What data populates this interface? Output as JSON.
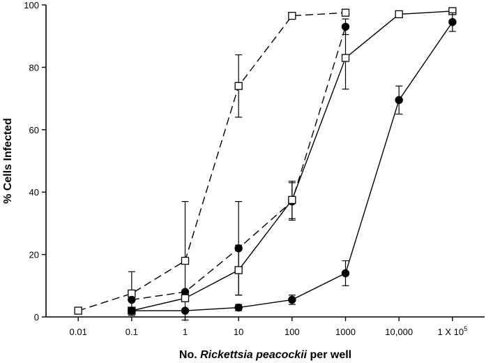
{
  "chart_data": {
    "type": "line",
    "xlabel_prefix": "No. ",
    "xlabel_italic": "Rickettsia peacockii",
    "xlabel_suffix": " per well",
    "ylabel": "% Cells Infected",
    "x_scale": "log",
    "xlim": [
      0.0025,
      400000
    ],
    "ylim": [
      0,
      100
    ],
    "x_ticks": [
      {
        "value": 0.01,
        "label": "0.01"
      },
      {
        "value": 0.1,
        "label": "0.1"
      },
      {
        "value": 1,
        "label": "1"
      },
      {
        "value": 10,
        "label": "10"
      },
      {
        "value": 100,
        "label": "100"
      },
      {
        "value": 1000,
        "label": "1000"
      },
      {
        "value": 10000,
        "label": "10,000"
      },
      {
        "value": 100000,
        "label": "1 X 10",
        "superscript": "5"
      }
    ],
    "y_ticks": [
      0,
      20,
      40,
      60,
      80,
      100
    ],
    "series": [
      {
        "marker": "open-square",
        "line": "dashed",
        "x": [
          0.01,
          0.1,
          1,
          10,
          100,
          1000
        ],
        "y": [
          2,
          7.5,
          18,
          74,
          96.5,
          97.5
        ],
        "err": [
          0,
          7,
          19,
          10,
          0,
          0
        ]
      },
      {
        "marker": "filled-circle",
        "line": "dashed",
        "x": [
          0.1,
          1,
          10,
          100,
          1000
        ],
        "y": [
          5.5,
          8,
          22,
          37,
          93
        ],
        "err": [
          0,
          0,
          15,
          6,
          2.5
        ]
      },
      {
        "marker": "open-square",
        "line": "solid",
        "x": [
          0.1,
          1,
          10,
          100,
          1000,
          10000,
          100000
        ],
        "y": [
          2,
          6,
          15,
          37.5,
          83,
          97,
          98
        ],
        "err": [
          0,
          0,
          8,
          6,
          10,
          0,
          0
        ]
      },
      {
        "marker": "filled-circle",
        "line": "solid",
        "x": [
          0.1,
          1,
          10,
          100,
          1000,
          10000,
          100000
        ],
        "y": [
          2,
          2,
          3,
          5.5,
          14,
          69.5,
          94.5
        ],
        "err": [
          0,
          0,
          1,
          1.5,
          4,
          4.5,
          3
        ]
      }
    ]
  }
}
